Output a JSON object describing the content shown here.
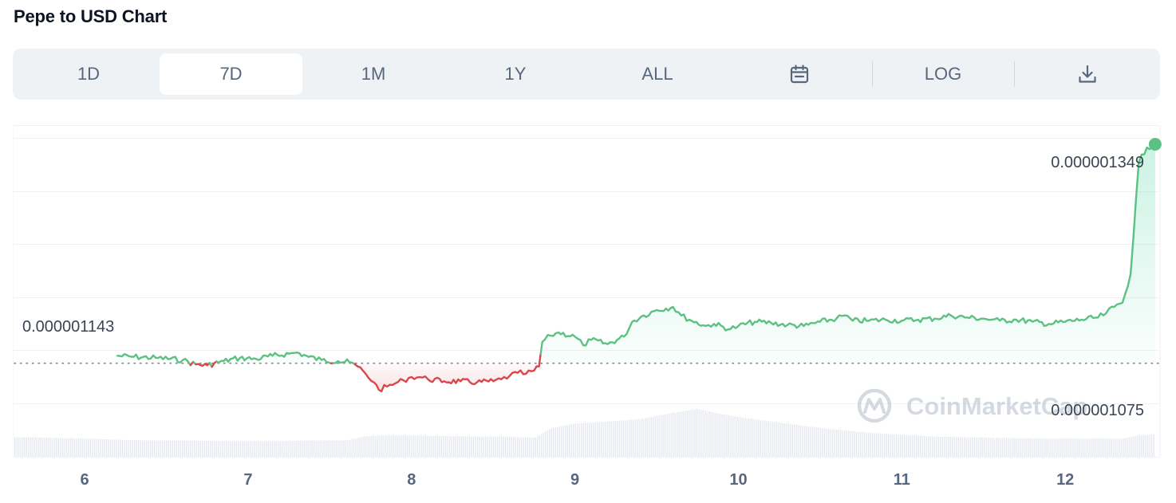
{
  "header": {
    "title": "Pepe to USD Chart"
  },
  "toolbar": {
    "ranges": [
      {
        "label": "1D",
        "active": false
      },
      {
        "label": "7D",
        "active": true
      },
      {
        "label": "1M",
        "active": false
      },
      {
        "label": "1Y",
        "active": false
      },
      {
        "label": "ALL",
        "active": false
      }
    ],
    "calendar_icon": "calendar-icon",
    "log_label": "LOG",
    "download_icon": "download-icon"
  },
  "watermark": "CoinMarketCap",
  "colors": {
    "up": "#16c784",
    "up_line": "#5dc183",
    "down": "#d9474c",
    "grid": "#eff2f5",
    "axis_text": "#58667e",
    "volume": "#cfd6e4"
  },
  "chart_data": {
    "type": "line",
    "title": "Pepe to USD Chart",
    "xlabel": "",
    "ylabel": "",
    "x_ticks": [
      "6",
      "7",
      "8",
      "9",
      "10",
      "11",
      "12"
    ],
    "x_tick_values": [
      6,
      7,
      8,
      9,
      10,
      11,
      12
    ],
    "xlim": [
      5.57,
      12.58
    ],
    "ylim": [
      1.055e-06,
      1.367e-06
    ],
    "y_labels": {
      "high": "0.000001349",
      "low": "0.000001075",
      "open": "0.000001143"
    },
    "open_price": 1.143e-06,
    "last_price": 1.349e-06,
    "grid": true,
    "series": [
      {
        "x": [
          6.2,
          6.3,
          6.45,
          6.6,
          6.68,
          6.75,
          6.85,
          6.95,
          7.05,
          7.15,
          7.25,
          7.3,
          7.37,
          7.45,
          7.55,
          7.62,
          7.67,
          7.72,
          7.77,
          7.8,
          7.85,
          7.9,
          7.95,
          8.0,
          8.05,
          8.1,
          8.2,
          8.3,
          8.4,
          8.5,
          8.55,
          8.6,
          8.65,
          8.7,
          8.75,
          8.78,
          8.8,
          8.85,
          8.9,
          9.0,
          9.05,
          9.1,
          9.2,
          9.3,
          9.35,
          9.42,
          9.5,
          9.6,
          9.65,
          9.7,
          9.8,
          9.85,
          9.95,
          10.0,
          10.1,
          10.2,
          10.3,
          10.4,
          10.5,
          10.6,
          10.65,
          10.7,
          10.8,
          10.9,
          11.0,
          11.1,
          11.2,
          11.3,
          11.4,
          11.5,
          11.55,
          11.6,
          11.7,
          11.8,
          11.9,
          12.0,
          12.1,
          12.2,
          12.25,
          12.3,
          12.35,
          12.4,
          12.45,
          12.5,
          12.55
        ],
        "values": [
          1.15e-06,
          1.149e-06,
          1.148e-06,
          1.146e-06,
          1.142e-06,
          1.141e-06,
          1.145e-06,
          1.148e-06,
          1.147e-06,
          1.15e-06,
          1.152e-06,
          1.153e-06,
          1.149e-06,
          1.146e-06,
          1.145e-06,
          1.144e-06,
          1.14e-06,
          1.133e-06,
          1.125e-06,
          1.118e-06,
          1.121e-06,
          1.124e-06,
          1.127e-06,
          1.13e-06,
          1.13e-06,
          1.128e-06,
          1.126e-06,
          1.126e-06,
          1.125e-06,
          1.126e-06,
          1.128e-06,
          1.131e-06,
          1.134e-06,
          1.133e-06,
          1.136e-06,
          1.14e-06,
          1.163e-06,
          1.169e-06,
          1.172e-06,
          1.168e-06,
          1.16e-06,
          1.165e-06,
          1.161e-06,
          1.168e-06,
          1.182e-06,
          1.188e-06,
          1.193e-06,
          1.196e-06,
          1.188e-06,
          1.184e-06,
          1.178e-06,
          1.18e-06,
          1.175e-06,
          1.178e-06,
          1.182e-06,
          1.181e-06,
          1.179e-06,
          1.178e-06,
          1.182e-06,
          1.185e-06,
          1.188e-06,
          1.183e-06,
          1.183e-06,
          1.184e-06,
          1.183e-06,
          1.184e-06,
          1.185e-06,
          1.188e-06,
          1.186e-06,
          1.185e-06,
          1.184e-06,
          1.183e-06,
          1.184e-06,
          1.182e-06,
          1.18e-06,
          1.182e-06,
          1.184e-06,
          1.186e-06,
          1.19e-06,
          1.196e-06,
          1.2e-06,
          1.227e-06,
          1.332e-06,
          1.346e-06,
          1.349e-06
        ]
      }
    ],
    "volume": {
      "x": [
        5.6,
        5.8,
        6.0,
        6.2,
        6.4,
        6.6,
        6.8,
        7.0,
        7.2,
        7.4,
        7.6,
        7.7,
        7.8,
        8.0,
        8.2,
        8.4,
        8.6,
        8.75,
        8.85,
        9.0,
        9.2,
        9.4,
        9.6,
        9.75,
        9.85,
        10.0,
        10.2,
        10.4,
        10.6,
        10.8,
        11.0,
        11.2,
        11.4,
        11.6,
        11.8,
        12.0,
        12.2,
        12.35,
        12.45,
        12.55
      ],
      "values": [
        3.1,
        3.0,
        2.9,
        2.7,
        2.6,
        2.6,
        2.5,
        2.5,
        2.5,
        2.6,
        2.6,
        3.2,
        3.4,
        3.4,
        3.3,
        3.2,
        3.2,
        3.0,
        4.5,
        5.3,
        5.6,
        6.0,
        7.0,
        7.6,
        7.0,
        6.3,
        5.6,
        4.9,
        4.3,
        3.8,
        3.5,
        3.2,
        3.1,
        3.0,
        2.9,
        2.9,
        2.9,
        2.9,
        3.4,
        3.6
      ]
    }
  }
}
